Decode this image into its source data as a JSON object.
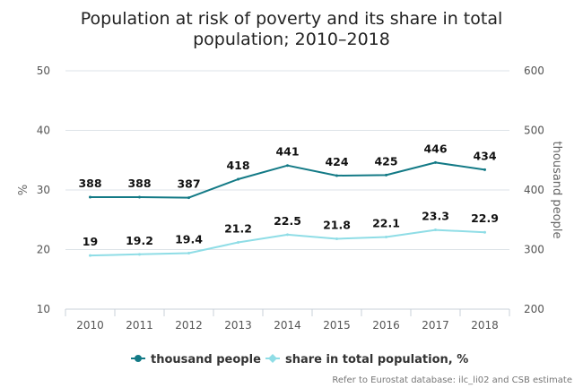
{
  "chart_data": {
    "type": "line",
    "title_lines": [
      "Population at risk of poverty and its share in total",
      "population; 2010–2018"
    ],
    "categories": [
      "2010",
      "2011",
      "2012",
      "2013",
      "2014",
      "2015",
      "2016",
      "2017",
      "2018"
    ],
    "y_left": {
      "label": "%",
      "range": [
        10,
        50
      ],
      "ticks": [
        10,
        20,
        30,
        40,
        50
      ]
    },
    "y_right": {
      "label": "thousand people",
      "range": [
        200,
        600
      ],
      "ticks": [
        200,
        300,
        400,
        500,
        600
      ]
    },
    "grid": true,
    "legend_position": "bottom-center",
    "series": [
      {
        "name": "thousand people",
        "axis": "right",
        "color": "#137a86",
        "values": [
          388,
          388,
          387,
          418,
          441,
          424,
          425,
          446,
          434
        ],
        "labels": [
          "388",
          "388",
          "387",
          "418",
          "441",
          "424",
          "425",
          "446",
          "434"
        ]
      },
      {
        "name": "share in total population, %",
        "axis": "left",
        "color": "#8fdde6",
        "values": [
          19,
          19.2,
          19.4,
          21.2,
          22.5,
          21.8,
          22.1,
          23.3,
          22.9
        ],
        "labels": [
          "19",
          "19.2",
          "19.4",
          "21.2",
          "22.5",
          "21.8",
          "22.1",
          "23.3",
          "22.9"
        ]
      }
    ],
    "credit": "Refer to Eurostat database: ilc_li02 and CSB estimate"
  }
}
